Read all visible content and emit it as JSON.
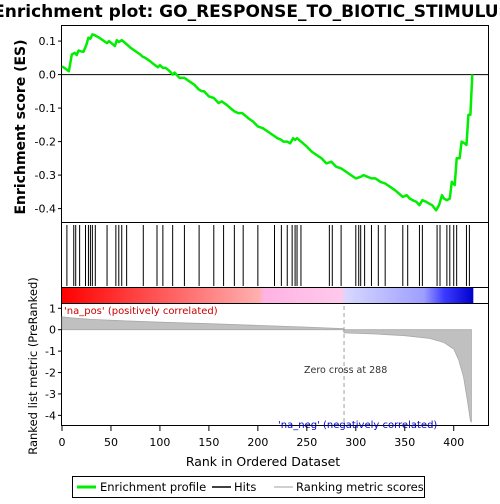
{
  "chart_data": {
    "type": "line",
    "title": "Enrichment plot: GO_RESPONSE_TO_BIOTIC_STIMULUS",
    "xlabel": "Rank in Ordered Dataset",
    "colors": {
      "profile": "#00ee00",
      "hits": "#000000",
      "metric_fill": "#c0c0c0",
      "metric_edge": "#a9a9a9",
      "pos_label": "#cc0000",
      "neg_label": "#0000cc",
      "zero_line": "#a0a0a0"
    },
    "x_ticks": [
      0,
      50,
      100,
      150,
      200,
      250,
      300,
      350,
      400
    ],
    "xlim": [
      0,
      435
    ],
    "es_panel": {
      "ylabel": "Enrichment score (ES)",
      "ylim": [
        -0.44,
        0.145
      ],
      "y_ticks": [
        0.1,
        0.0,
        -0.1,
        -0.2,
        -0.3,
        -0.4
      ],
      "y_tick_labels": [
        "0.1",
        "0.0",
        "-0.1",
        "-0.2",
        "-0.3",
        "-0.4"
      ],
      "series": [
        {
          "name": "Enrichment profile",
          "points": [
            [
              0,
              0.025
            ],
            [
              7,
              0.01
            ],
            [
              10,
              0.06
            ],
            [
              13,
              0.065
            ],
            [
              15,
              0.058
            ],
            [
              17,
              0.072
            ],
            [
              20,
              0.069
            ],
            [
              22,
              0.068
            ],
            [
              25,
              0.09
            ],
            [
              27,
              0.11
            ],
            [
              29,
              0.107
            ],
            [
              31,
              0.12
            ],
            [
              33,
              0.118
            ],
            [
              38,
              0.11
            ],
            [
              43,
              0.1
            ],
            [
              46,
              0.094
            ],
            [
              48,
              0.1
            ],
            [
              54,
              0.085
            ],
            [
              56,
              0.103
            ],
            [
              58,
              0.097
            ],
            [
              61,
              0.103
            ],
            [
              65,
              0.093
            ],
            [
              70,
              0.08
            ],
            [
              75,
              0.07
            ],
            [
              80,
              0.06
            ],
            [
              82,
              0.054
            ],
            [
              85,
              0.05
            ],
            [
              90,
              0.04
            ],
            [
              95,
              0.028
            ],
            [
              98,
              0.022
            ],
            [
              100,
              0.028
            ],
            [
              103,
              0.02
            ],
            [
              106,
              0.02
            ],
            [
              110,
              0.01
            ],
            [
              113,
              0.0
            ],
            [
              115,
              0.006
            ],
            [
              120,
              -0.01
            ],
            [
              125,
              -0.01
            ],
            [
              130,
              -0.02
            ],
            [
              135,
              -0.03
            ],
            [
              140,
              -0.045
            ],
            [
              143,
              -0.05
            ],
            [
              145,
              -0.05
            ],
            [
              150,
              -0.065
            ],
            [
              155,
              -0.07
            ],
            [
              160,
              -0.085
            ],
            [
              163,
              -0.08
            ],
            [
              168,
              -0.09
            ],
            [
              172,
              -0.1
            ],
            [
              176,
              -0.11
            ],
            [
              180,
              -0.115
            ],
            [
              184,
              -0.115
            ],
            [
              190,
              -0.13
            ],
            [
              195,
              -0.14
            ],
            [
              200,
              -0.155
            ],
            [
              205,
              -0.16
            ],
            [
              210,
              -0.17
            ],
            [
              215,
              -0.18
            ],
            [
              220,
              -0.19
            ],
            [
              224,
              -0.195
            ],
            [
              226,
              -0.2
            ],
            [
              230,
              -0.2
            ],
            [
              233,
              -0.205
            ],
            [
              236,
              -0.19
            ],
            [
              238,
              -0.195
            ],
            [
              240,
              -0.19
            ],
            [
              244,
              -0.2
            ],
            [
              250,
              -0.215
            ],
            [
              255,
              -0.23
            ],
            [
              260,
              -0.24
            ],
            [
              265,
              -0.25
            ],
            [
              270,
              -0.265
            ],
            [
              275,
              -0.26
            ],
            [
              280,
              -0.275
            ],
            [
              285,
              -0.28
            ],
            [
              290,
              -0.29
            ],
            [
              295,
              -0.3
            ],
            [
              300,
              -0.31
            ],
            [
              305,
              -0.305
            ],
            [
              308,
              -0.3
            ],
            [
              312,
              -0.305
            ],
            [
              316,
              -0.31
            ],
            [
              320,
              -0.31
            ],
            [
              325,
              -0.32
            ],
            [
              330,
              -0.325
            ],
            [
              335,
              -0.335
            ],
            [
              340,
              -0.345
            ],
            [
              344,
              -0.355
            ],
            [
              348,
              -0.365
            ],
            [
              352,
              -0.36
            ],
            [
              355,
              -0.37
            ],
            [
              358,
              -0.375
            ],
            [
              362,
              -0.38
            ],
            [
              365,
              -0.39
            ],
            [
              368,
              -0.375
            ],
            [
              372,
              -0.38
            ],
            [
              375,
              -0.385
            ],
            [
              378,
              -0.39
            ],
            [
              382,
              -0.405
            ],
            [
              385,
              -0.39
            ],
            [
              388,
              -0.36
            ],
            [
              390,
              -0.37
            ],
            [
              393,
              -0.375
            ],
            [
              396,
              -0.37
            ],
            [
              398,
              -0.32
            ],
            [
              401,
              -0.33
            ],
            [
              403,
              -0.25
            ],
            [
              406,
              -0.25
            ],
            [
              408,
              -0.2
            ],
            [
              411,
              -0.205
            ],
            [
              413,
              -0.21
            ],
            [
              415,
              -0.12
            ],
            [
              417,
              -0.12
            ],
            [
              419,
              0.0
            ]
          ]
        }
      ]
    },
    "hits": [
      5,
      12,
      14,
      18,
      24,
      27,
      29,
      31,
      34,
      46,
      55,
      58,
      61,
      66,
      83,
      97,
      103,
      113,
      125,
      140,
      155,
      165,
      176,
      185,
      200,
      217,
      224,
      230,
      235,
      238,
      240,
      244,
      273,
      276,
      285,
      300,
      303,
      305,
      309,
      316,
      323,
      330,
      348,
      353,
      365,
      368,
      383,
      386,
      393,
      396,
      400,
      403,
      413,
      416
    ],
    "ranking_panel": {
      "ylabel": "Ranked list metric (PreRanked)",
      "ylim": [
        -4.45,
        1.2
      ],
      "y_ticks": [
        1,
        0,
        -1,
        -2,
        -3,
        -4
      ],
      "y_tick_labels": [
        "1",
        "0",
        "-1",
        "-2",
        "-3",
        "-4"
      ],
      "metric_points": [
        [
          0,
          0.6
        ],
        [
          10,
          0.55
        ],
        [
          30,
          0.48
        ],
        [
          60,
          0.42
        ],
        [
          100,
          0.35
        ],
        [
          150,
          0.28
        ],
        [
          200,
          0.2
        ],
        [
          250,
          0.12
        ],
        [
          287,
          0.05
        ],
        [
          288,
          -0.15
        ],
        [
          320,
          -0.2
        ],
        [
          350,
          -0.28
        ],
        [
          375,
          -0.4
        ],
        [
          390,
          -0.6
        ],
        [
          400,
          -0.9
        ],
        [
          405,
          -1.4
        ],
        [
          410,
          -2.2
        ],
        [
          414,
          -3.3
        ],
        [
          417,
          -4.25
        ],
        [
          418,
          -4.3
        ]
      ],
      "zero_cross_label": "Zero cross at 288",
      "zero_cross": 288,
      "pos_label": "'na_pos' (positively correlated)",
      "neg_label": "'na_neg' (negatively correlated)"
    },
    "color_bar": {
      "n": 420,
      "stops": [
        [
          0,
          "#ff0000"
        ],
        [
          0.48,
          "#ffb0b0"
        ],
        [
          0.49,
          "#ffb3e3"
        ],
        [
          0.68,
          "#ffc9ec"
        ],
        [
          0.69,
          "#d7d7ff"
        ],
        [
          0.88,
          "#9e9eff"
        ],
        [
          0.93,
          "#3a3aff"
        ],
        [
          1.0,
          "#0000cc"
        ]
      ]
    },
    "legend": {
      "placement": "bottom",
      "entries": [
        {
          "label": "Enrichment profile",
          "kind": "profile"
        },
        {
          "label": "Hits",
          "kind": "hits"
        },
        {
          "label": "Ranking metric scores",
          "kind": "metric"
        }
      ]
    }
  }
}
